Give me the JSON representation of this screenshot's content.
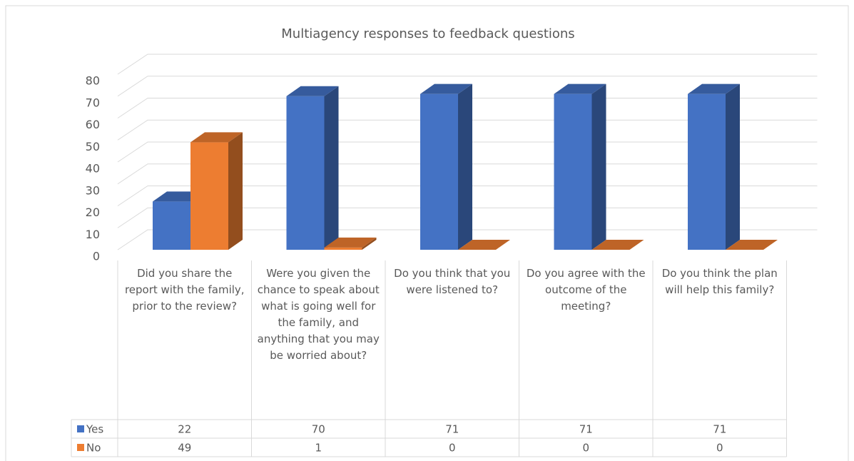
{
  "chart_data": {
    "type": "bar3d",
    "title": "Multiagency responses to feedback questions",
    "categories": [
      "Did you share the report with the family, prior to the review?",
      "Were you given the chance to speak about what is going well for the family, and anything that you may be worried about?",
      "Do you think that you were listened to?",
      "Do you agree with the outcome of the meeting?",
      "Do you think the plan will help this family?"
    ],
    "series": [
      {
        "name": "Yes",
        "color": "#4472c4",
        "values": [
          22,
          70,
          71,
          71,
          71
        ]
      },
      {
        "name": "No",
        "color": "#ed7d31",
        "values": [
          49,
          1,
          0,
          0,
          0
        ]
      }
    ],
    "ylim": [
      0,
      80
    ],
    "yticks": [
      0,
      10,
      20,
      30,
      40,
      50,
      60,
      70,
      80
    ],
    "grid": true,
    "data_table": true
  }
}
